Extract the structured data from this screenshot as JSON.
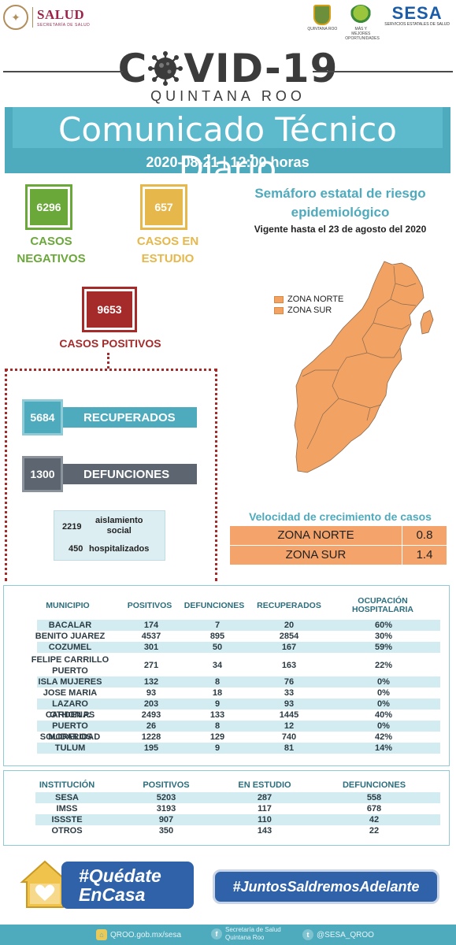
{
  "header": {
    "salud_name": "SALUD",
    "salud_sub": "SECRETARÍA DE SALUD",
    "qroo_caption": "QUINTANA ROO",
    "mas_caption": "MÁS Y MEJORES OPORTUNIDADES",
    "sesa_name": "SESA",
    "sesa_sub": "SERVICIOS ESTATALES DE SALUD"
  },
  "title": {
    "covid_left": "C",
    "covid_right": "VID-19",
    "subtitle": "QUINTANA ROO"
  },
  "banner": {
    "title": "Comunicado Técnico Diario",
    "date": "2020-08-21 | 12:00 horas"
  },
  "counts": {
    "negativos_value": "6296",
    "negativos_label_1": "CASOS",
    "negativos_label_2": "NEGATIVOS",
    "estudio_value": "657",
    "estudio_label_1": "CASOS EN",
    "estudio_label_2": "ESTUDIO",
    "positivos_value": "9653",
    "positivos_label": "CASOS POSITIVOS",
    "recuperados_value": "5684",
    "recuperados_label": "RECUPERADOS",
    "defunciones_value": "1300",
    "defunciones_label": "DEFUNCIONES",
    "aislamiento_value": "2219",
    "aislamiento_label_1": "aislamiento",
    "aislamiento_label_2": "social",
    "hospitalizados_value": "450",
    "hospitalizados_label": "hospitalizados"
  },
  "semaforo": {
    "title_1": "Semáforo estatal de riesgo",
    "title_2": "epidemiológico",
    "vigencia": "Vigente hasta el 23 de agosto del 2020",
    "legend": [
      "ZONA NORTE",
      "ZONA SUR"
    ],
    "zone_color": "#f2a263"
  },
  "velocidad": {
    "title": "Velocidad de crecimiento de casos",
    "rows": [
      {
        "zona": "ZONA NORTE",
        "valor": "0.8"
      },
      {
        "zona": "ZONA SUR",
        "valor": "1.4"
      }
    ]
  },
  "municipios": {
    "headers": [
      "MUNICIPIO",
      "POSITIVOS",
      "DEFUNCIONES",
      "RECUPERADOS",
      "OCUPACIÓN HOSPITALARIA"
    ],
    "rows": [
      [
        "BACALAR",
        "174",
        "7",
        "20",
        "60%"
      ],
      [
        "BENITO JUAREZ",
        "4537",
        "895",
        "2854",
        "30%"
      ],
      [
        "COZUMEL",
        "301",
        "50",
        "167",
        "59%"
      ],
      [
        "FELIPE CARRILLO PUERTO",
        "271",
        "34",
        "163",
        "22%"
      ],
      [
        "ISLA MUJERES",
        "132",
        "8",
        "76",
        "0%"
      ],
      [
        "JOSE MARIA MORELOS",
        "93",
        "18",
        "33",
        "0%"
      ],
      [
        "LAZARO CARDENAS",
        "203",
        "9",
        "93",
        "0%"
      ],
      [
        "OTHON P. BLANCO",
        "2493",
        "133",
        "1445",
        "40%"
      ],
      [
        "PUERTO MORELOS",
        "26",
        "8",
        "12",
        "0%"
      ],
      [
        "SOLIDARIDAD",
        "1228",
        "129",
        "740",
        "42%"
      ],
      [
        "TULUM",
        "195",
        "9",
        "81",
        "14%"
      ]
    ]
  },
  "instituciones": {
    "headers": [
      "INSTITUCIÓN",
      "POSITIVOS",
      "EN ESTUDIO",
      "DEFUNCIONES"
    ],
    "rows": [
      [
        "SESA",
        "5203",
        "287",
        "558"
      ],
      [
        "IMSS",
        "3193",
        "117",
        "678"
      ],
      [
        "ISSSTE",
        "907",
        "110",
        "42"
      ],
      [
        "OTROS",
        "350",
        "143",
        "22"
      ]
    ]
  },
  "campaign": {
    "quedate_1": "#Quédate",
    "quedate_2": "EnCasa",
    "juntos": "#JuntosSaldremosAdelante"
  },
  "footer": {
    "web": "QROO.gob.mx/sesa",
    "facebook_1": "Secretaría de Salud",
    "facebook_2": "Quintana Roo",
    "twitter": "@SESA_QROO"
  }
}
